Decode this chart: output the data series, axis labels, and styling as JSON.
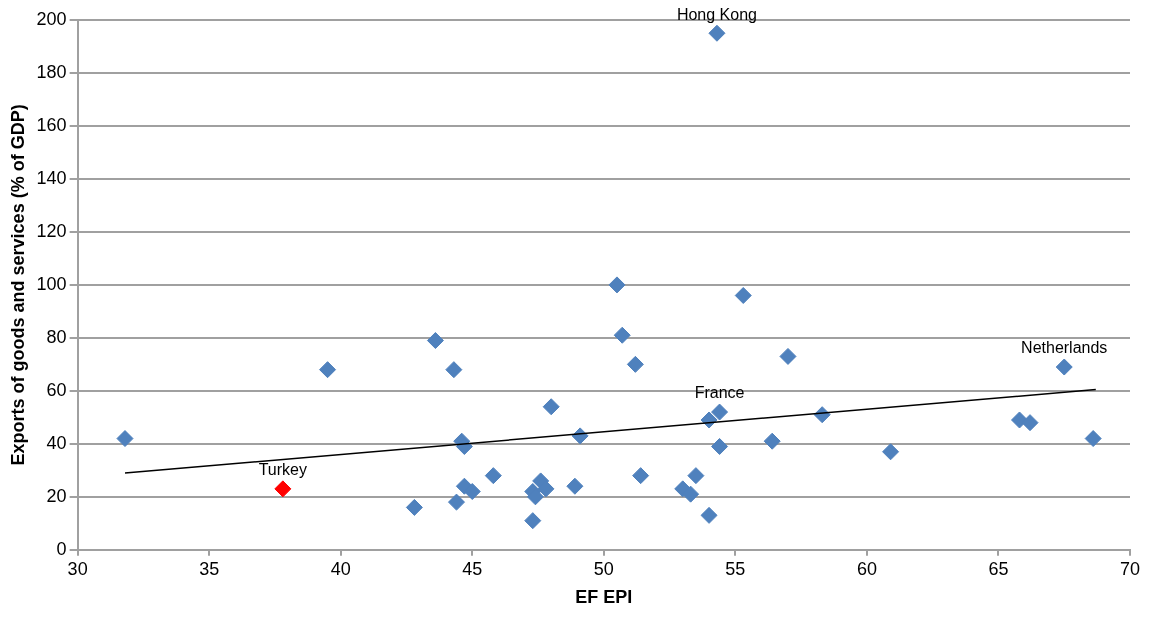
{
  "chart_data": {
    "type": "scatter",
    "xlabel": "EF EPI",
    "ylabel": "Exports of goods and services (% of GDP)",
    "xlim": [
      30,
      70
    ],
    "xticks": [
      30,
      35,
      40,
      45,
      50,
      55,
      60,
      65,
      70
    ],
    "ylim": [
      0,
      200
    ],
    "yticks": [
      0,
      20,
      40,
      60,
      80,
      100,
      120,
      140,
      160,
      180,
      200
    ],
    "grid": "y",
    "legend": false,
    "marker": "diamond",
    "series": [
      {
        "type": "scatter",
        "color": "#4f81bd",
        "colors": [
          "#4f81bd",
          "#ff0000",
          "#4f81bd",
          "#4f81bd",
          "#4f81bd",
          "#4f81bd",
          "#4f81bd",
          "#4f81bd",
          "#4f81bd",
          "#4f81bd",
          "#4f81bd",
          "#4f81bd",
          "#4f81bd",
          "#4f81bd",
          "#4f81bd",
          "#4f81bd",
          "#4f81bd",
          "#4f81bd",
          "#4f81bd",
          "#4f81bd",
          "#4f81bd",
          "#4f81bd",
          "#4f81bd",
          "#4f81bd",
          "#4f81bd",
          "#4f81bd",
          "#4f81bd",
          "#4f81bd",
          "#4f81bd",
          "#4f81bd",
          "#4f81bd",
          "#4f81bd",
          "#4f81bd",
          "#4f81bd",
          "#4f81bd",
          "#4f81bd",
          "#4f81bd",
          "#4f81bd",
          "#4f81bd",
          "#4f81bd",
          "#4f81bd"
        ],
        "x": [
          31.8,
          37.8,
          39.5,
          42.8,
          43.6,
          44.3,
          44.4,
          44.6,
          44.7,
          44.7,
          45.0,
          45.8,
          47.3,
          47.3,
          47.4,
          47.6,
          47.8,
          48.0,
          48.9,
          49.1,
          50.5,
          50.7,
          51.2,
          51.4,
          53.0,
          53.3,
          53.5,
          54.0,
          54.0,
          54.4,
          54.4,
          54.3,
          55.3,
          56.4,
          57.0,
          58.3,
          60.9,
          65.8,
          66.2,
          67.5,
          68.6
        ],
        "values": [
          42,
          23,
          68,
          16,
          79,
          68,
          18,
          41,
          39,
          24,
          22,
          28,
          22,
          11,
          20,
          26,
          23,
          54,
          24,
          43,
          100,
          81,
          70,
          28,
          23,
          21,
          28,
          13,
          49,
          52,
          39,
          195,
          96,
          41,
          73,
          51,
          37,
          49,
          48,
          69,
          42
        ]
      },
      {
        "type": "line",
        "color": "#000000",
        "marker": "none",
        "line_style": "solid",
        "x": [
          31.8,
          68.7
        ],
        "values": [
          29,
          60.5
        ]
      }
    ],
    "annotations": [
      {
        "text": "Hong Kong",
        "x": 54.3,
        "y": 195
      },
      {
        "text": "Netherlands",
        "x": 67.5,
        "y": 69
      },
      {
        "text": "France",
        "x": 54.4,
        "y": 52
      },
      {
        "text": "Turkey",
        "x": 37.8,
        "y": 23
      }
    ]
  }
}
